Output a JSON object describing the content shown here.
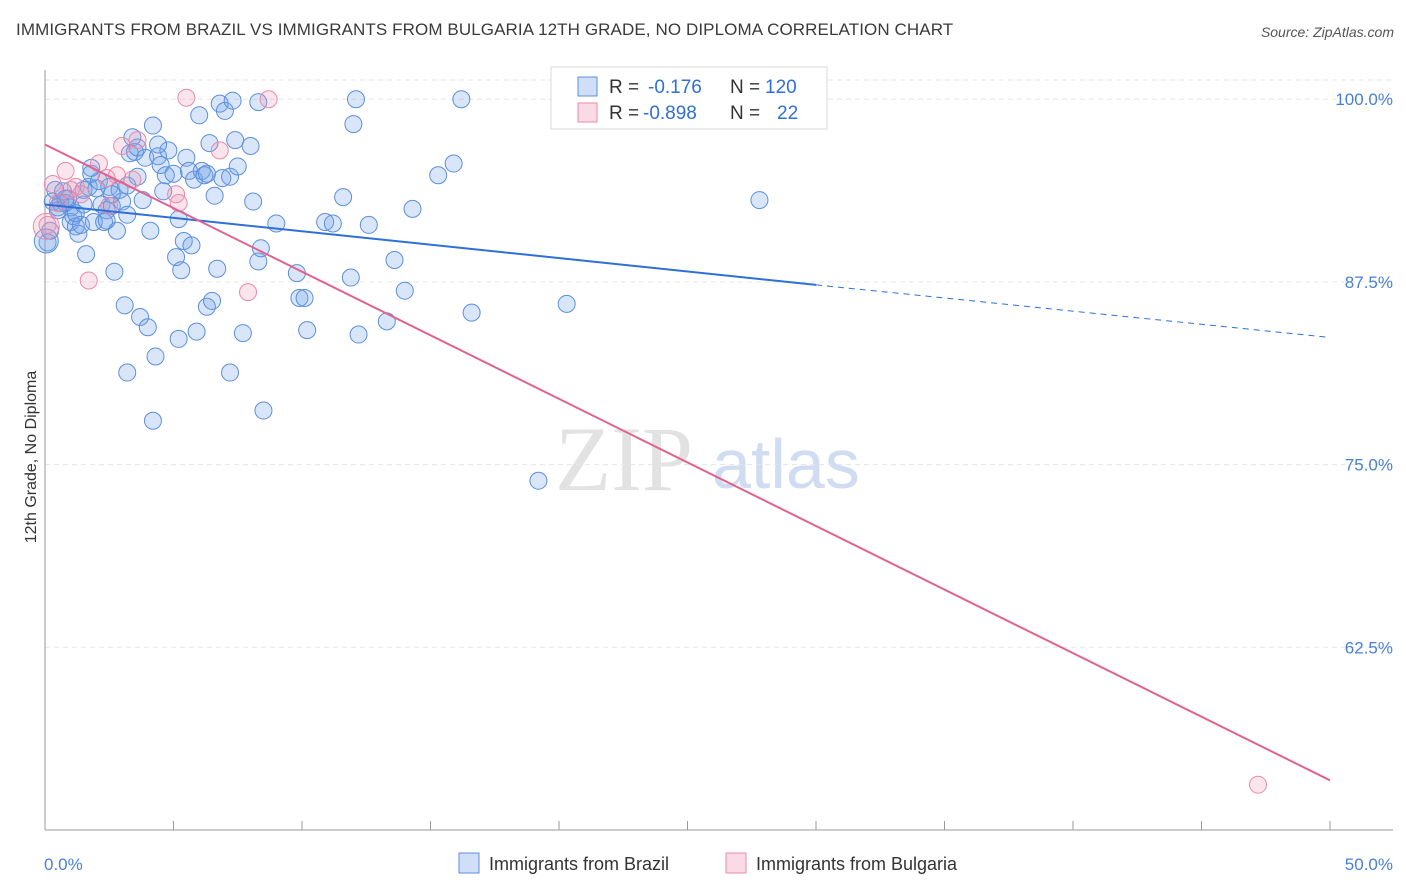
{
  "title": "IMMIGRANTS FROM BRAZIL VS IMMIGRANTS FROM BULGARIA 12TH GRADE, NO DIPLOMA CORRELATION CHART",
  "source": "Source: ZipAtlas.com",
  "watermark": {
    "zip": "ZIP",
    "atlas": "atlas"
  },
  "colors": {
    "brazil_fill": "rgba(120,164,232,0.28)",
    "brazil_stroke": "#5b8fdc",
    "brazil_line": "#2e6fd8",
    "bulgaria_fill": "rgba(240,150,180,0.25)",
    "bulgaria_stroke": "#e98aab",
    "bulgaria_line": "#e0638f",
    "accent_text": "#4a7fd6"
  },
  "legend": {
    "rows": [
      {
        "r_label": "R =",
        "r_value": "-0.176",
        "n_label": "N =",
        "n_value": "120"
      },
      {
        "r_label": "R =",
        "r_value": "-0.898",
        "n_label": "N =",
        "n_value": "22"
      }
    ]
  },
  "chart_data": {
    "type": "scatter",
    "xlabel": "",
    "ylabel": "12th Grade, No Diploma",
    "x_tick_labels": [
      "0.0%",
      "50.0%"
    ],
    "y_tick_labels": [
      "100.0%",
      "87.5%",
      "75.0%",
      "62.5%"
    ],
    "xlim": [
      0,
      50
    ],
    "ylim": [
      50,
      102
    ],
    "y_ticks": [
      100,
      87.5,
      75,
      62.5
    ],
    "grid": true,
    "legend_position": "top-center",
    "series": [
      {
        "name": "Immigrants from Brazil",
        "R": -0.176,
        "N": 120,
        "trend": {
          "x0": 0,
          "y0": 92.8,
          "x1": 30,
          "y1": 87.3,
          "dash_x1": 50,
          "dash_y1": 83.7
        },
        "points": [
          [
            0.1,
            90.2
          ],
          [
            0.2,
            91.0
          ],
          [
            0.3,
            93.0
          ],
          [
            0.4,
            93.8
          ],
          [
            0.5,
            92.6
          ],
          [
            0.6,
            92.9
          ],
          [
            0.7,
            93.7
          ],
          [
            0.8,
            92.9
          ],
          [
            0.9,
            93.2
          ],
          [
            1.0,
            91.6
          ],
          [
            1.0,
            92.6
          ],
          [
            1.1,
            92.0
          ],
          [
            1.2,
            91.3
          ],
          [
            1.3,
            90.8
          ],
          [
            1.4,
            91.4
          ],
          [
            1.5,
            92.8
          ],
          [
            1.5,
            93.8
          ],
          [
            1.6,
            89.4
          ],
          [
            1.7,
            94.0
          ],
          [
            1.8,
            94.9
          ],
          [
            1.9,
            91.6
          ],
          [
            2.0,
            93.9
          ],
          [
            2.1,
            94.4
          ],
          [
            2.2,
            92.8
          ],
          [
            2.3,
            91.6
          ],
          [
            2.4,
            92.4
          ],
          [
            2.5,
            94.0
          ],
          [
            2.6,
            92.7
          ],
          [
            2.7,
            88.2
          ],
          [
            2.8,
            91.0
          ],
          [
            2.9,
            93.8
          ],
          [
            3.0,
            93.0
          ],
          [
            3.1,
            85.9
          ],
          [
            3.2,
            92.1
          ],
          [
            3.3,
            96.3
          ],
          [
            3.4,
            97.4
          ],
          [
            3.5,
            96.4
          ],
          [
            3.6,
            94.7
          ],
          [
            3.7,
            85.1
          ],
          [
            3.8,
            93.1
          ],
          [
            3.9,
            96.0
          ],
          [
            4.0,
            84.4
          ],
          [
            4.1,
            91.0
          ],
          [
            4.2,
            98.2
          ],
          [
            4.3,
            82.4
          ],
          [
            4.4,
            96.1
          ],
          [
            4.5,
            95.5
          ],
          [
            4.6,
            93.7
          ],
          [
            4.7,
            94.8
          ],
          [
            4.8,
            96.5
          ],
          [
            5.0,
            94.9
          ],
          [
            5.1,
            89.2
          ],
          [
            5.2,
            83.6
          ],
          [
            5.3,
            88.3
          ],
          [
            5.4,
            90.3
          ],
          [
            5.5,
            96.0
          ],
          [
            5.6,
            95.1
          ],
          [
            5.7,
            90.0
          ],
          [
            5.8,
            94.5
          ],
          [
            5.9,
            84.1
          ],
          [
            6.0,
            98.9
          ],
          [
            6.1,
            95.1
          ],
          [
            6.2,
            94.8
          ],
          [
            6.3,
            85.8
          ],
          [
            6.4,
            97.0
          ],
          [
            6.5,
            86.2
          ],
          [
            6.6,
            93.4
          ],
          [
            6.7,
            88.4
          ],
          [
            6.8,
            99.7
          ],
          [
            6.9,
            94.6
          ],
          [
            7.0,
            99.2
          ],
          [
            7.2,
            94.7
          ],
          [
            7.3,
            99.9
          ],
          [
            7.4,
            97.2
          ],
          [
            7.5,
            95.4
          ],
          [
            7.7,
            84.0
          ],
          [
            8.0,
            96.8
          ],
          [
            8.1,
            93.0
          ],
          [
            8.3,
            88.9
          ],
          [
            8.4,
            89.8
          ],
          [
            8.5,
            78.7
          ],
          [
            9.0,
            91.5
          ],
          [
            9.8,
            88.1
          ],
          [
            9.9,
            86.4
          ],
          [
            10.1,
            86.4
          ],
          [
            10.2,
            84.2
          ],
          [
            10.9,
            91.6
          ],
          [
            11.2,
            91.5
          ],
          [
            11.6,
            93.3
          ],
          [
            11.9,
            87.8
          ],
          [
            12.0,
            98.3
          ],
          [
            12.1,
            100.0
          ],
          [
            12.2,
            83.9
          ],
          [
            12.6,
            91.4
          ],
          [
            13.3,
            84.8
          ],
          [
            13.6,
            89.0
          ],
          [
            14.0,
            86.9
          ],
          [
            14.3,
            92.5
          ],
          [
            15.3,
            94.8
          ],
          [
            15.9,
            95.6
          ],
          [
            16.2,
            100.0
          ],
          [
            16.6,
            85.4
          ],
          [
            19.2,
            73.9
          ],
          [
            20.3,
            86.0
          ],
          [
            27.8,
            93.1
          ],
          [
            3.2,
            81.3
          ],
          [
            4.2,
            78.0
          ],
          [
            7.2,
            81.3
          ],
          [
            3.6,
            96.7
          ],
          [
            4.4,
            96.9
          ],
          [
            8.3,
            99.8
          ],
          [
            0.8,
            93.2
          ],
          [
            1.8,
            95.3
          ],
          [
            2.6,
            93.5
          ],
          [
            5.2,
            91.8
          ],
          [
            6.3,
            94.9
          ],
          [
            0.5,
            92.4
          ],
          [
            1.2,
            92.2
          ],
          [
            2.4,
            91.7
          ],
          [
            3.2,
            94.1
          ]
        ]
      },
      {
        "name": "Immigrants from Bulgaria",
        "R": -0.898,
        "N": 22,
        "trend": {
          "x0": 0,
          "y0": 96.9,
          "x1": 50,
          "y1": 53.4
        },
        "points": [
          [
            0.1,
            91.4
          ],
          [
            0.3,
            94.2
          ],
          [
            0.5,
            92.9
          ],
          [
            0.8,
            95.1
          ],
          [
            1.2,
            94.0
          ],
          [
            1.4,
            93.5
          ],
          [
            1.7,
            87.6
          ],
          [
            2.1,
            95.6
          ],
          [
            2.4,
            94.6
          ],
          [
            2.5,
            92.7
          ],
          [
            2.8,
            94.8
          ],
          [
            3.0,
            96.8
          ],
          [
            3.4,
            94.5
          ],
          [
            3.6,
            97.2
          ],
          [
            5.1,
            93.5
          ],
          [
            5.2,
            92.9
          ],
          [
            5.5,
            100.1
          ],
          [
            6.8,
            96.5
          ],
          [
            7.9,
            86.8
          ],
          [
            8.7,
            100.0
          ],
          [
            47.2,
            53.1
          ],
          [
            1.0,
            93.8
          ]
        ]
      }
    ]
  },
  "bottom_legend": [
    {
      "label": "Immigrants from Brazil"
    },
    {
      "label": "Immigrants from Bulgaria"
    }
  ]
}
